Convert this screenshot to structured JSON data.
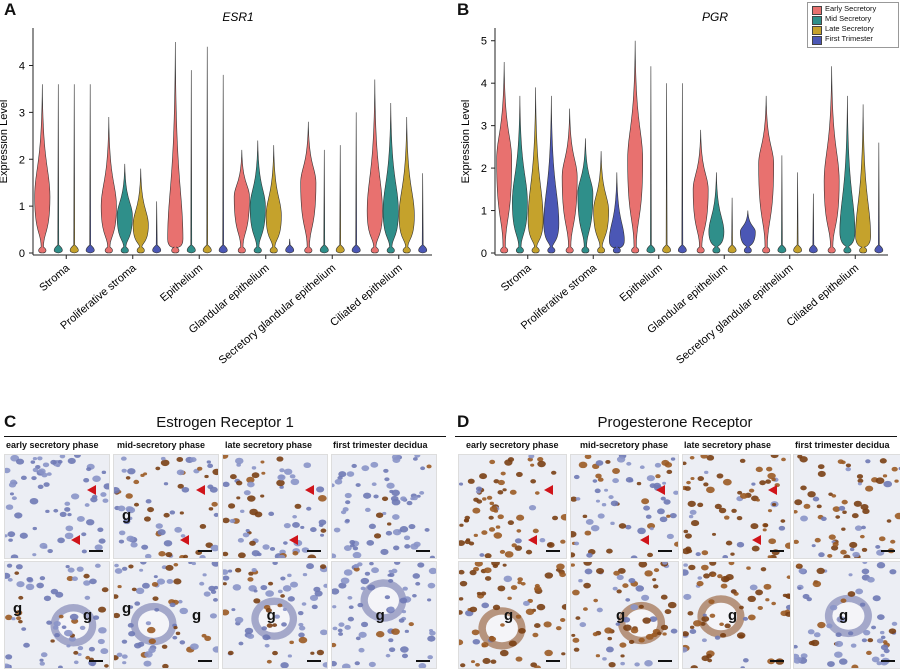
{
  "panels": {
    "A": "A",
    "B": "B",
    "C": "C",
    "D": "D"
  },
  "colors": {
    "early_secretory": "#E8716F",
    "mid_secretory": "#2F8F8A",
    "late_secretory": "#C5A22C",
    "first_trimester": "#4B57B5"
  },
  "chart_data": [
    {
      "type": "violin",
      "title": "ESR1",
      "xlabel": "",
      "ylabel": "Expression Level",
      "ylim": [
        0,
        4.8
      ],
      "yticks": [
        "0",
        "1",
        "2",
        "3",
        "4"
      ],
      "categories": [
        "Stroma",
        "Proliferative stroma",
        "Epithelium",
        "Glandular epithelium",
        "Secretory glandular epithelium",
        "Ciliated epithelium"
      ],
      "series": [
        {
          "name": "Early Secretory",
          "max": [
            3.6,
            2.9,
            4.5,
            2.2,
            2.8,
            3.7
          ],
          "center": [
            1.2,
            1.0,
            0.3,
            1.2,
            1.5,
            0.9
          ]
        },
        {
          "name": "Mid Secretory",
          "max": [
            3.6,
            1.9,
            3.9,
            2.4,
            2.2,
            3.2
          ],
          "center": [
            0.0,
            0.8,
            0.0,
            1.0,
            0.0,
            0.9
          ]
        },
        {
          "name": "Late Secretory",
          "max": [
            3.6,
            1.8,
            4.4,
            2.3,
            2.3,
            2.9
          ],
          "center": [
            0.0,
            0.6,
            0.0,
            0.8,
            0.0,
            0.8
          ]
        },
        {
          "name": "First Trimester",
          "max": [
            3.6,
            1.1,
            3.8,
            0.3,
            3.0,
            1.7
          ],
          "center": [
            0.0,
            0.0,
            0.0,
            0.0,
            0.0,
            0.0
          ]
        }
      ]
    },
    {
      "type": "violin",
      "title": "PGR",
      "xlabel": "",
      "ylabel": "Expression Level",
      "ylim": [
        0,
        5.3
      ],
      "yticks": [
        "0",
        "1",
        "2",
        "3",
        "4",
        "5"
      ],
      "categories": [
        "Stroma",
        "Proliferative stroma",
        "Epithelium",
        "Glandular epithelium",
        "Secretory glandular epithelium",
        "Ciliated epithelium"
      ],
      "series": [
        {
          "name": "Early Secretory",
          "max": [
            4.5,
            3.4,
            5.0,
            2.9,
            3.7,
            4.4
          ],
          "center": [
            2.2,
            1.8,
            2.2,
            1.5,
            2.1,
            1.7
          ]
        },
        {
          "name": "Mid Secretory",
          "max": [
            3.7,
            2.7,
            4.4,
            1.9,
            2.3,
            3.7
          ],
          "center": [
            1.2,
            1.4,
            0.0,
            0.5,
            0.0,
            0.5
          ]
        },
        {
          "name": "Late Secretory",
          "max": [
            3.9,
            2.4,
            4.0,
            1.3,
            1.9,
            3.5
          ],
          "center": [
            0.8,
            1.0,
            0.0,
            0.0,
            0.0,
            0.4
          ]
        },
        {
          "name": "First Trimester",
          "max": [
            3.7,
            1.9,
            4.0,
            1.0,
            1.4,
            2.6
          ],
          "center": [
            0.7,
            0.3,
            0.0,
            0.5,
            0.0,
            0.0
          ]
        }
      ]
    }
  ],
  "legend": {
    "entries": [
      "Early Secretory",
      "Mid Secretory",
      "Late Secretory",
      "First Trimester"
    ]
  },
  "histology": {
    "C": {
      "title": "Estrogen Receptor 1",
      "columns": [
        "early secretory phase",
        "mid-secretory phase",
        "late secretory phase",
        "first trimester decidua"
      ],
      "bottom_labels": [
        [
          "g",
          "g"
        ],
        [
          "g",
          "g"
        ],
        [
          "g"
        ],
        [
          "g"
        ]
      ],
      "top_labels": [
        "",
        "g",
        "",
        ""
      ]
    },
    "D": {
      "title": "Progesterone Receptor",
      "columns": [
        "early secretory phase",
        "mid-secretory phase",
        "late secretory phase",
        "first trimester decidua"
      ],
      "bottom_labels": [
        [
          "g"
        ],
        [
          "g"
        ],
        [
          "g"
        ],
        [
          "g"
        ]
      ],
      "top_labels": [
        "",
        "",
        "",
        ""
      ]
    }
  }
}
